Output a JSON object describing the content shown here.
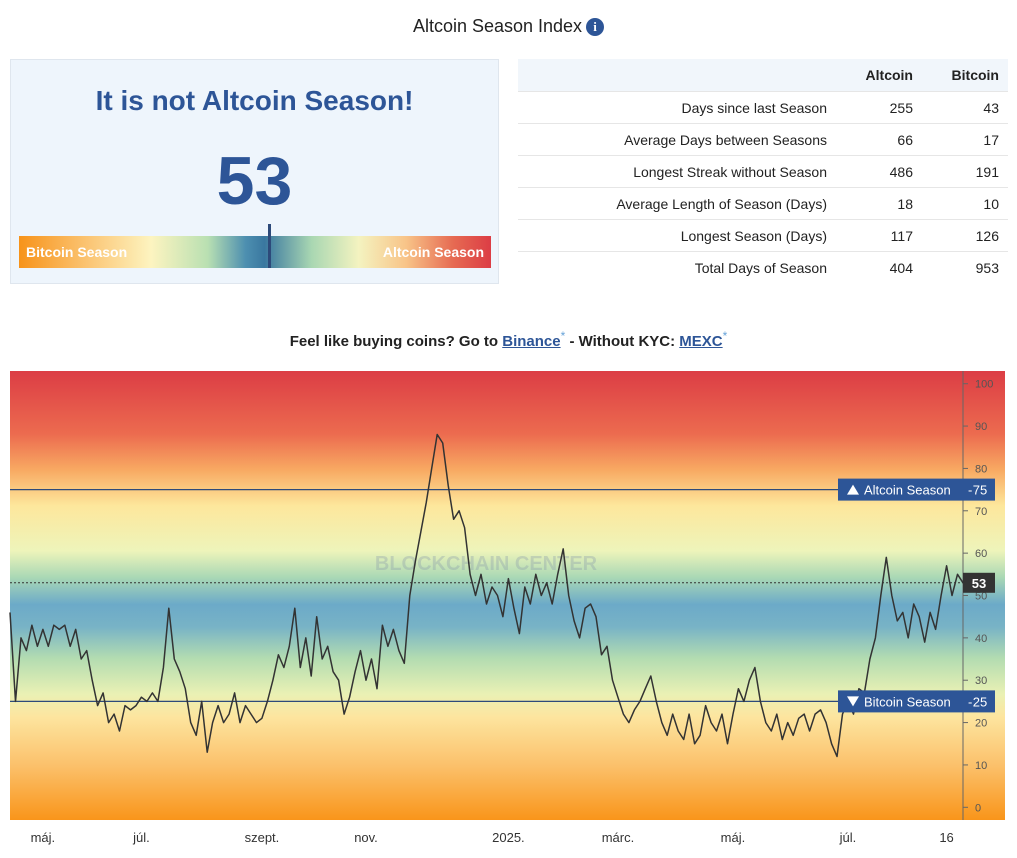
{
  "header": {
    "title": "Altcoin Season Index"
  },
  "status": {
    "headline": "It is not Altcoin Season!",
    "index": 53,
    "gauge_left": "Bitcoin Season",
    "gauge_right": "Altcoin Season"
  },
  "table": {
    "columns": [
      "Altcoin",
      "Bitcoin"
    ],
    "rows": [
      {
        "label": "Days since last Season",
        "altcoin": 255,
        "bitcoin": 43
      },
      {
        "label": "Average Days between Seasons",
        "altcoin": 66,
        "bitcoin": 17
      },
      {
        "label": "Longest Streak without Season",
        "altcoin": 486,
        "bitcoin": 191
      },
      {
        "label": "Average Length of Season (Days)",
        "altcoin": 18,
        "bitcoin": 10
      },
      {
        "label": "Longest Season (Days)",
        "altcoin": 117,
        "bitcoin": 126
      },
      {
        "label": "Total Days of Season",
        "altcoin": 404,
        "bitcoin": 953
      }
    ]
  },
  "promo": {
    "lead": "Feel like buying coins? Go to",
    "link1": "Binance",
    "star1": "*",
    "middle": "- Without KYC:",
    "link2": "MEXC",
    "star2": "*"
  },
  "chart_data": {
    "type": "line",
    "color": "#333333",
    "watermark": "BLOCKCHAIN CENTER",
    "categories": [
      null,
      null,
      null,
      null,
      null,
      null,
      "máj.",
      null,
      null,
      null,
      null,
      null,
      null,
      null,
      null,
      null,
      null,
      null,
      null,
      null,
      null,
      null,
      null,
      null,
      "júl.",
      null,
      null,
      null,
      null,
      null,
      null,
      null,
      null,
      null,
      null,
      null,
      null,
      null,
      null,
      null,
      null,
      null,
      null,
      null,
      null,
      null,
      "szept.",
      null,
      null,
      null,
      null,
      null,
      null,
      null,
      null,
      null,
      null,
      null,
      null,
      null,
      null,
      null,
      null,
      null,
      null,
      "nov.",
      null,
      null,
      null,
      null,
      null,
      null,
      null,
      null,
      null,
      null,
      null,
      null,
      null,
      null,
      null,
      null,
      null,
      null,
      null,
      null,
      null,
      null,
      null,
      null,
      null,
      "2025.",
      null,
      null,
      null,
      null,
      null,
      null,
      null,
      null,
      null,
      null,
      null,
      null,
      null,
      null,
      null,
      null,
      null,
      null,
      null,
      "márc.",
      null,
      null,
      null,
      null,
      null,
      null,
      null,
      null,
      null,
      null,
      null,
      null,
      null,
      null,
      null,
      null,
      null,
      null,
      null,
      null,
      "máj.",
      null,
      null,
      null,
      null,
      null,
      null,
      null,
      null,
      null,
      null,
      null,
      null,
      null,
      null,
      null,
      null,
      null,
      null,
      null,
      null,
      "júl.",
      null,
      null,
      null,
      null,
      null,
      null,
      null,
      null,
      null,
      null,
      null,
      null,
      null,
      null,
      null,
      null,
      null,
      "16",
      null,
      null,
      null
    ],
    "values": [
      46,
      25,
      40,
      37,
      43,
      38,
      42,
      38,
      43,
      42,
      43,
      38,
      42,
      35,
      37,
      30,
      24,
      27,
      20,
      22,
      18,
      24,
      23,
      24,
      26,
      25,
      27,
      25,
      33,
      47,
      35,
      32,
      28,
      20,
      17,
      25,
      13,
      20,
      24,
      20,
      22,
      27,
      20,
      24,
      22,
      20,
      21,
      25,
      30,
      36,
      33,
      38,
      47,
      33,
      40,
      31,
      45,
      35,
      38,
      32,
      30,
      22,
      26,
      32,
      37,
      30,
      35,
      28,
      43,
      38,
      42,
      37,
      34,
      50,
      58,
      65,
      72,
      80,
      88,
      86,
      76,
      68,
      70,
      66,
      55,
      50,
      55,
      48,
      52,
      50,
      45,
      54,
      47,
      41,
      52,
      48,
      55,
      50,
      53,
      48,
      55,
      61,
      50,
      44,
      40,
      47,
      48,
      45,
      36,
      38,
      30,
      26,
      22,
      20,
      23,
      25,
      28,
      31,
      25,
      20,
      17,
      22,
      18,
      16,
      22,
      15,
      17,
      24,
      20,
      18,
      22,
      15,
      22,
      28,
      25,
      30,
      33,
      25,
      20,
      18,
      22,
      16,
      20,
      17,
      21,
      22,
      18,
      22,
      23,
      20,
      15,
      12,
      22,
      25,
      22,
      28,
      27,
      35,
      40,
      50,
      59,
      50,
      44,
      46,
      40,
      48,
      45,
      39,
      46,
      42,
      50,
      57,
      50,
      55,
      53
    ],
    "ylim": [
      -3,
      103
    ],
    "yticks": [
      0,
      10,
      20,
      30,
      40,
      50,
      60,
      70,
      80,
      90,
      100
    ],
    "reference_lines": [
      {
        "name": "Altcoin Season",
        "value": 75
      },
      {
        "name": "Bitcoin Season",
        "value": 25
      }
    ],
    "current_value": 53
  }
}
